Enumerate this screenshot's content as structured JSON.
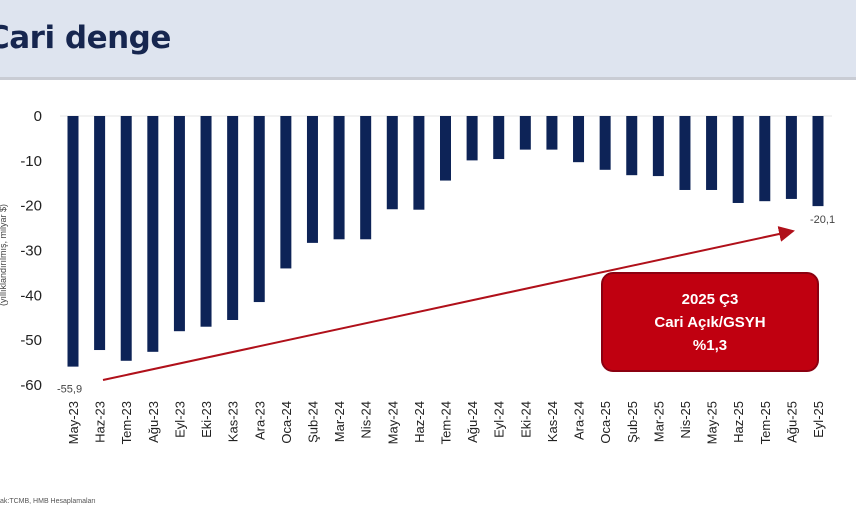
{
  "header": {
    "title": "Cari denge"
  },
  "callout": {
    "line1": "2025 Ç3",
    "line2": "Cari Açık/GSYH",
    "line3": "%1,3"
  },
  "source": "ak:TCMB, HMB Hesaplamaları",
  "chart_data": {
    "type": "bar",
    "ylabel": "(yıllıklandırılmış, milyar $)",
    "ylim": [
      -60,
      0
    ],
    "yticks": [
      0,
      -10,
      -20,
      -30,
      -40,
      -50,
      -60
    ],
    "grid": false,
    "bar_color": "#0d2357",
    "trend_arrow_color": "#b0101a",
    "categories": [
      "May-23",
      "Haz-23",
      "Tem-23",
      "Ağu-23",
      "Eyl-23",
      "Eki-23",
      "Kas-23",
      "Ara-23",
      "Oca-24",
      "Şub-24",
      "Mar-24",
      "Nis-24",
      "May-24",
      "Haz-24",
      "Tem-24",
      "Ağu-24",
      "Eyl-24",
      "Eki-24",
      "Kas-24",
      "Ara-24",
      "Oca-25",
      "Şub-25",
      "Mar-25",
      "Nis-25",
      "May-25",
      "Haz-25",
      "Tem-25",
      "Ağu-25",
      "Eyl-25"
    ],
    "values": [
      -55.9,
      -52.2,
      -54.6,
      -52.6,
      -48.0,
      -47.0,
      -45.5,
      -41.5,
      -34.0,
      -28.3,
      -27.5,
      -27.5,
      -20.8,
      -20.9,
      -14.4,
      -9.9,
      -9.6,
      -7.5,
      -7.5,
      -10.3,
      -12.0,
      -13.2,
      -13.4,
      -16.5,
      -16.5,
      -19.4,
      -19.0,
      -18.5,
      -20.1
    ],
    "data_labels": [
      {
        "index": 0,
        "text": "-55,9"
      },
      {
        "index": 28,
        "text": "-20,1"
      }
    ]
  }
}
